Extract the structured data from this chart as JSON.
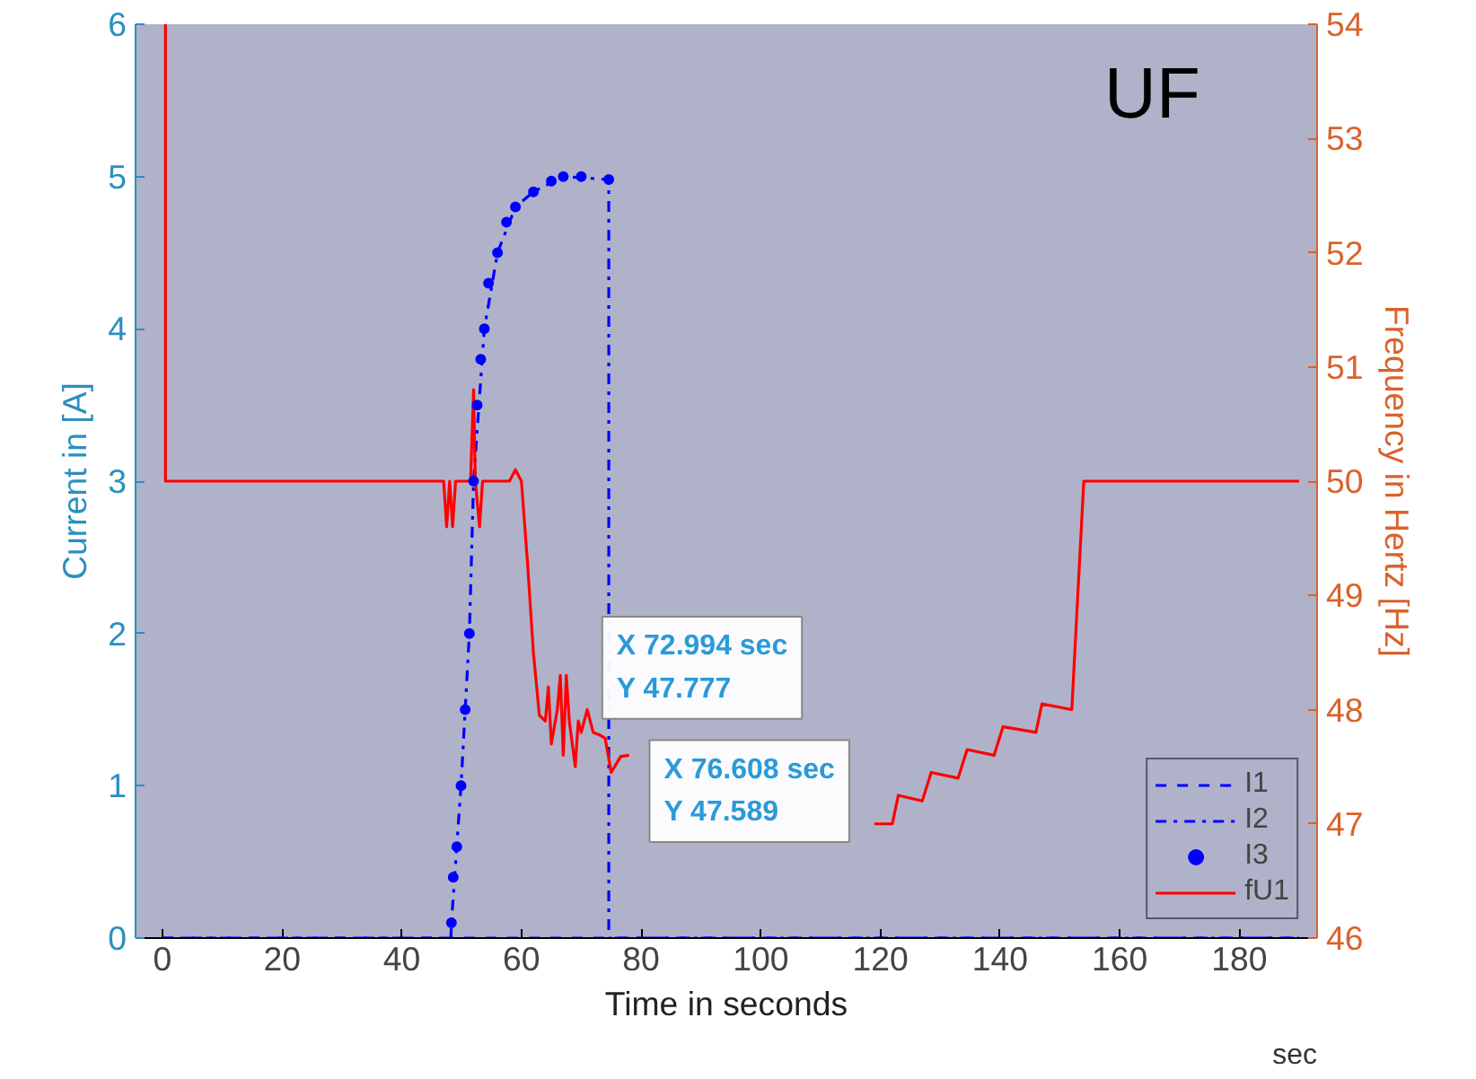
{
  "chart_data": {
    "type": "line",
    "xlabel": "Time in seconds",
    "ylabel": "Current in [A]",
    "y2label": "Frequency in Hertz [Hz]",
    "xlim": [
      -4.5,
      193
    ],
    "xticks": [
      0,
      20,
      40,
      60,
      80,
      100,
      120,
      140,
      160,
      180
    ],
    "ylim": [
      0,
      6
    ],
    "yticks": [
      0,
      1,
      2,
      3,
      4,
      5,
      6
    ],
    "y2lim": [
      46,
      54
    ],
    "y2ticks": [
      46,
      47,
      48,
      49,
      50,
      51,
      52,
      53,
      54
    ],
    "grid": false,
    "legend": "bottom right",
    "series": [
      {
        "name": "I1",
        "line_style": "dashed",
        "color": "#0000ff",
        "x": [
          0,
          190
        ],
        "values": [
          0,
          0
        ]
      },
      {
        "name": "I2",
        "line_style": "dashdot",
        "color": "#0000ff",
        "x": [
          0,
          48.2,
          48.3,
          49.9,
          51.3,
          52.0,
          53.8,
          56,
          59,
          62,
          67,
          74.6,
          74.6,
          190
        ],
        "values": [
          0,
          0,
          0.1,
          1.0,
          2.0,
          3.0,
          4.0,
          4.5,
          4.8,
          4.9,
          5.0,
          4.98,
          0,
          0
        ]
      },
      {
        "name": "I3",
        "type": "scatter",
        "marker": "circle",
        "color": "#0000ff",
        "x": [
          48.3,
          48.6,
          49.2,
          49.9,
          50.6,
          51.3,
          52.0,
          52.6,
          53.2,
          53.8,
          54.5,
          56,
          57.5,
          59,
          62,
          65,
          67,
          70,
          74.6
        ],
        "values": [
          0.1,
          0.4,
          0.6,
          1.0,
          1.5,
          2.0,
          3.0,
          3.5,
          3.8,
          4.0,
          4.3,
          4.5,
          4.7,
          4.8,
          4.9,
          4.97,
          5.0,
          5.0,
          4.98
        ]
      },
      {
        "name": "fU1",
        "line_style": "solid",
        "axis": "y2",
        "color": "#ff0000",
        "x": [
          0.5,
          0.5,
          10,
          20,
          30,
          40,
          47,
          47.5,
          48,
          48.5,
          49,
          51.5,
          52,
          52.3,
          53,
          53.5,
          58,
          59,
          60,
          61,
          62,
          63,
          64,
          64.5,
          65,
          66,
          66.5,
          67,
          67.5,
          68,
          69,
          69.5,
          70,
          71,
          72,
          73,
          74,
          75,
          76.6,
          78,
          98,
          119,
          122,
          123,
          127,
          128.5,
          133,
          134.5,
          139,
          140.5,
          146,
          147,
          152,
          154,
          165,
          180,
          190
        ],
        "values": [
          54,
          50,
          50,
          50,
          50,
          50,
          50,
          49.6,
          50,
          49.6,
          50,
          50,
          50.8,
          50,
          49.6,
          50,
          50,
          50.1,
          50,
          49.3,
          48.5,
          47.95,
          47.9,
          48.2,
          47.7,
          48,
          48.3,
          47.6,
          48.3,
          47.9,
          47.5,
          47.9,
          47.8,
          48.0,
          47.8,
          47.78,
          47.75,
          47.45,
          47.59,
          47.6,
          null,
          47.0,
          47.0,
          47.25,
          47.2,
          47.45,
          47.4,
          47.65,
          47.6,
          47.85,
          47.8,
          48.05,
          48.0,
          50,
          50,
          50,
          50
        ]
      }
    ],
    "annotations": [
      "UF",
      "X 72.994 sec\nY 47.777",
      "X 76.608 sec\nY 47.589",
      "sec"
    ]
  }
}
